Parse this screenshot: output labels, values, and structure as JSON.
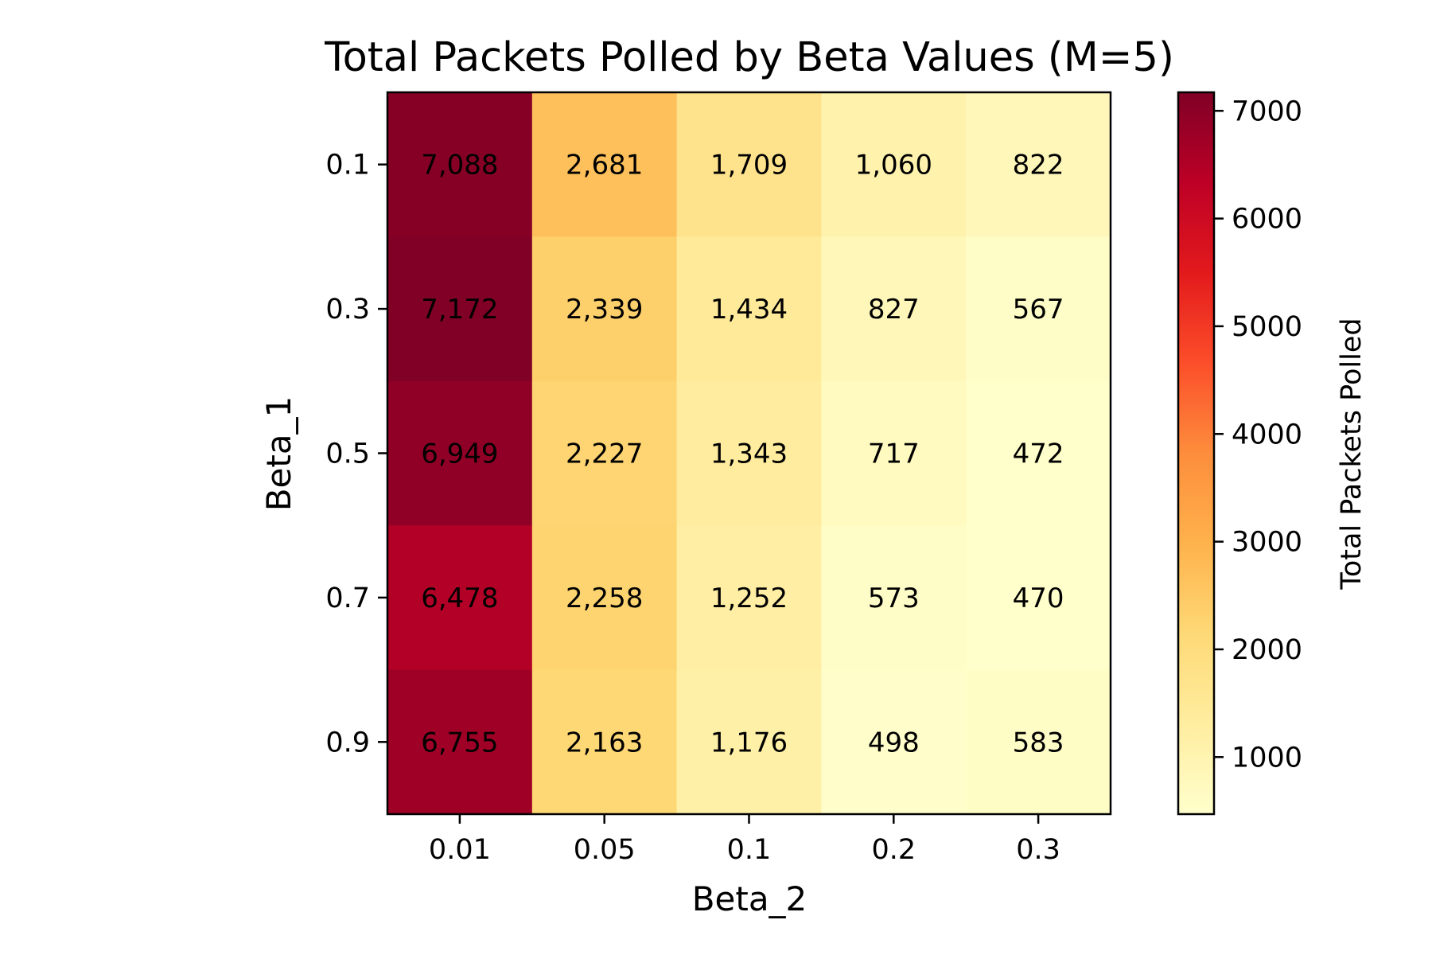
{
  "chart_data": {
    "type": "heatmap",
    "title": "Total Packets Polled by Beta Values (M=5)",
    "xlabel": "Beta_2",
    "ylabel": "Beta_1",
    "x_categories": [
      "0.01",
      "0.05",
      "0.1",
      "0.2",
      "0.3"
    ],
    "y_categories": [
      "0.1",
      "0.3",
      "0.5",
      "0.7",
      "0.9"
    ],
    "values": [
      [
        7088,
        2681,
        1709,
        1060,
        822
      ],
      [
        7172,
        2339,
        1434,
        827,
        567
      ],
      [
        6949,
        2227,
        1343,
        717,
        472
      ],
      [
        6478,
        2258,
        1252,
        573,
        470
      ],
      [
        6755,
        2163,
        1176,
        498,
        583
      ]
    ],
    "value_labels": [
      [
        "7,088",
        "2,681",
        "1,709",
        "1,060",
        "822"
      ],
      [
        "7,172",
        "2,339",
        "1,434",
        "827",
        "567"
      ],
      [
        "6,949",
        "2,227",
        "1,343",
        "717",
        "472"
      ],
      [
        "6,478",
        "2,258",
        "1,252",
        "573",
        "470"
      ],
      [
        "6,755",
        "2,163",
        "1,176",
        "498",
        "583"
      ]
    ],
    "colormap": "YlOrRd",
    "colormap_colors": [
      "#ffffcc",
      "#ffeda0",
      "#fed976",
      "#feb24c",
      "#fd8d3c",
      "#fc4e2a",
      "#e31a1c",
      "#bd0026",
      "#800026"
    ],
    "colorbar": {
      "label": "Total Packets Polled",
      "range": [
        470,
        7172
      ],
      "ticks": [
        1000,
        2000,
        3000,
        4000,
        5000,
        6000,
        7000
      ],
      "tick_labels": [
        "1000",
        "2000",
        "3000",
        "4000",
        "5000",
        "6000",
        "7000"
      ]
    }
  }
}
